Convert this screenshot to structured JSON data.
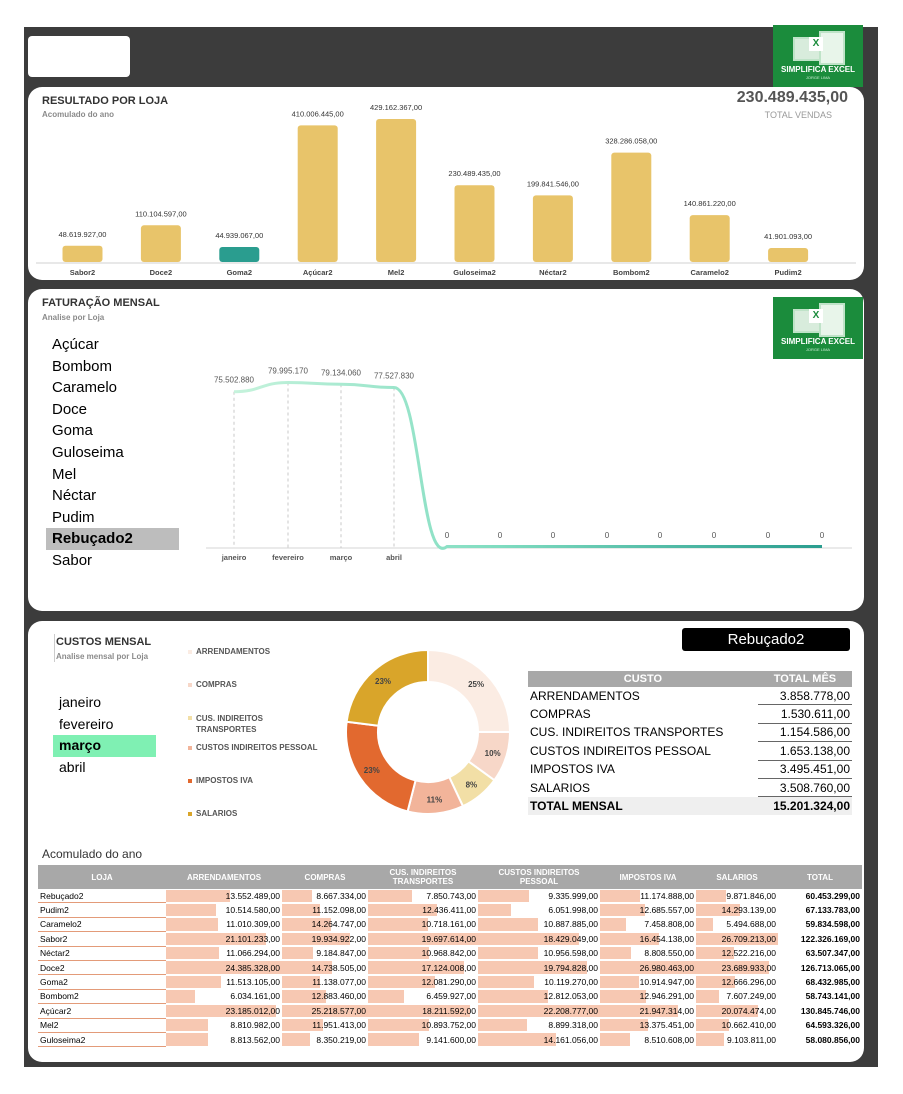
{
  "brand": {
    "logo_text": "SIMPLIFICA EXCEL",
    "logo_subtext": "JORGE LIMA",
    "colors": {
      "gold": "#e8c46a",
      "teal": "#2a9d8f",
      "green": "#1b8c3c",
      "mint": "#7ff0b3",
      "salmon": "#f7c8b2"
    }
  },
  "resultado": {
    "title": "RESULTADO POR LOJA",
    "subtitle": "Acomulado do ano",
    "total_value": "230.489.435,00",
    "total_label": "TOTAL VENDAS",
    "chart_data": {
      "type": "bar",
      "categories": [
        "Sabor2",
        "Doce2",
        "Goma2",
        "Açúcar2",
        "Mel2",
        "Guloseima2",
        "Néctar2",
        "Bombom2",
        "Caramelo2",
        "Pudim2"
      ],
      "values": [
        48619927,
        110104597,
        44939067,
        410006445,
        429162367,
        230489435,
        199841546,
        328286058,
        140861220,
        41901093
      ],
      "labels": [
        "48.619.927,00",
        "110.104.597,00",
        "44.939.067,00",
        "410.006.445,00",
        "429.162.367,00",
        "230.489.435,00",
        "199.841.546,00",
        "328.286.058,00",
        "140.861.220,00",
        "41.901.093,00"
      ],
      "highlight_index": 2
    }
  },
  "faturacao": {
    "title": "FATURAÇÃO MENSAL",
    "subtitle": "Analise por Loja",
    "stores": [
      "Açúcar",
      "Bombom",
      "Caramelo",
      "Doce",
      "Goma",
      "Guloseima",
      "Mel",
      "Néctar",
      "Pudim",
      "Rebuçado2",
      "Sabor"
    ],
    "selected_store_index": 9,
    "chart_data": {
      "type": "line",
      "x": [
        "janeiro",
        "fevereiro",
        "março",
        "abril",
        "",
        "",
        "",
        "",
        "",
        "",
        "",
        ""
      ],
      "values": [
        75502880,
        79995170,
        79134060,
        77527830,
        0,
        0,
        0,
        0,
        0,
        0,
        0,
        0
      ],
      "labels": [
        "75.502.880",
        "79.995.170",
        "79.134.060",
        "77.527.830",
        "0",
        "0",
        "0",
        "0",
        "0",
        "0",
        "0",
        "0"
      ]
    }
  },
  "custos": {
    "title": "CUSTOS MENSAL",
    "subtitle": "Analise mensal por Loja",
    "months": [
      "janeiro",
      "fevereiro",
      "março",
      "abril"
    ],
    "selected_month_index": 2,
    "legend": [
      "ARRENDAMENTOS",
      "COMPRAS",
      "CUS. INDIREITOS TRANSPORTES",
      "CUSTOS INDIREITOS PESSOAL",
      "IMPOSTOS IVA",
      "SALARIOS"
    ],
    "selected_store": "Rebuçado2",
    "chart_data": {
      "type": "pie",
      "categories": [
        "ARRENDAMENTOS",
        "COMPRAS",
        "CUS. INDIREITOS TRANSPORTES",
        "CUSTOS INDIREITOS PESSOAL",
        "IMPOSTOS IVA",
        "SALARIOS"
      ],
      "values": [
        25,
        10,
        8,
        11,
        23,
        23
      ],
      "labels": [
        "25%",
        "10%",
        "8%",
        "11%",
        "23%",
        "23%"
      ],
      "colors": [
        "#fbece3",
        "#f7d7c8",
        "#f2dfa6",
        "#f2b49a",
        "#e2692f",
        "#d9a52a"
      ]
    },
    "table": {
      "headers": [
        "CUSTO",
        "TOTAL MÊS"
      ],
      "rows": [
        [
          "ARRENDAMENTOS",
          "3.858.778,00"
        ],
        [
          "COMPRAS",
          "1.530.611,00"
        ],
        [
          "CUS. INDIREITOS TRANSPORTES",
          "1.154.586,00"
        ],
        [
          "CUSTOS INDIREITOS PESSOAL",
          "1.653.138,00"
        ],
        [
          "IMPOSTOS IVA",
          "3.495.451,00"
        ],
        [
          "SALARIOS",
          "3.508.760,00"
        ]
      ],
      "total_label": "TOTAL MENSAL",
      "total_value": "15.201.324,00"
    }
  },
  "acumulado": {
    "title": "Acomulado do ano",
    "headers": [
      "LOJA",
      "ARRENDAMENTOS",
      "COMPRAS",
      "CUS. INDIREITOS TRANSPORTES",
      "CUSTOS INDIREITOS PESSOAL",
      "IMPOSTOS IVA",
      "SALARIOS",
      "TOTAL"
    ],
    "rows": [
      [
        "Rebuçado2",
        "13.552.489,00",
        "8.667.334,00",
        "7.850.743,00",
        "9.335.999,00",
        "11.174.888,00",
        "9.871.846,00",
        "60.453.299,00"
      ],
      [
        "Pudim2",
        "10.514.580,00",
        "11.152.098,00",
        "12.436.411,00",
        "6.051.998,00",
        "12.685.557,00",
        "14.293.139,00",
        "67.133.783,00"
      ],
      [
        "Caramelo2",
        "11.010.309,00",
        "14.264.747,00",
        "10.718.161,00",
        "10.887.885,00",
        "7.458.808,00",
        "5.494.688,00",
        "59.834.598,00"
      ],
      [
        "Sabor2",
        "21.101.233,00",
        "19.934.922,00",
        "19.697.614,00",
        "18.429.049,00",
        "16.454.138,00",
        "26.709.213,00",
        "122.326.169,00"
      ],
      [
        "Néctar2",
        "11.066.294,00",
        "9.184.847,00",
        "10.968.842,00",
        "10.956.598,00",
        "8.808.550,00",
        "12.522.216,00",
        "63.507.347,00"
      ],
      [
        "Doce2",
        "24.385.328,00",
        "14.738.505,00",
        "17.124.008,00",
        "19.794.828,00",
        "26.980.463,00",
        "23.689.933,00",
        "126.713.065,00"
      ],
      [
        "Goma2",
        "11.513.105,00",
        "11.138.077,00",
        "12.081.290,00",
        "10.119.270,00",
        "10.914.947,00",
        "12.666.296,00",
        "68.432.985,00"
      ],
      [
        "Bombom2",
        "6.034.161,00",
        "12.883.460,00",
        "6.459.927,00",
        "12.812.053,00",
        "12.946.291,00",
        "7.607.249,00",
        "58.743.141,00"
      ],
      [
        "Açúcar2",
        "23.185.012,00",
        "25.218.577,00",
        "18.211.592,00",
        "22.208.777,00",
        "21.947.314,00",
        "20.074.474,00",
        "130.845.746,00"
      ],
      [
        "Mel2",
        "8.810.982,00",
        "11.951.413,00",
        "10.893.752,00",
        "8.899.318,00",
        "13.375.451,00",
        "10.662.410,00",
        "64.593.326,00"
      ],
      [
        "Guloseima2",
        "8.813.562,00",
        "8.350.219,00",
        "9.141.600,00",
        "14.161.056,00",
        "8.510.608,00",
        "9.103.811,00",
        "58.080.856,00"
      ]
    ]
  }
}
